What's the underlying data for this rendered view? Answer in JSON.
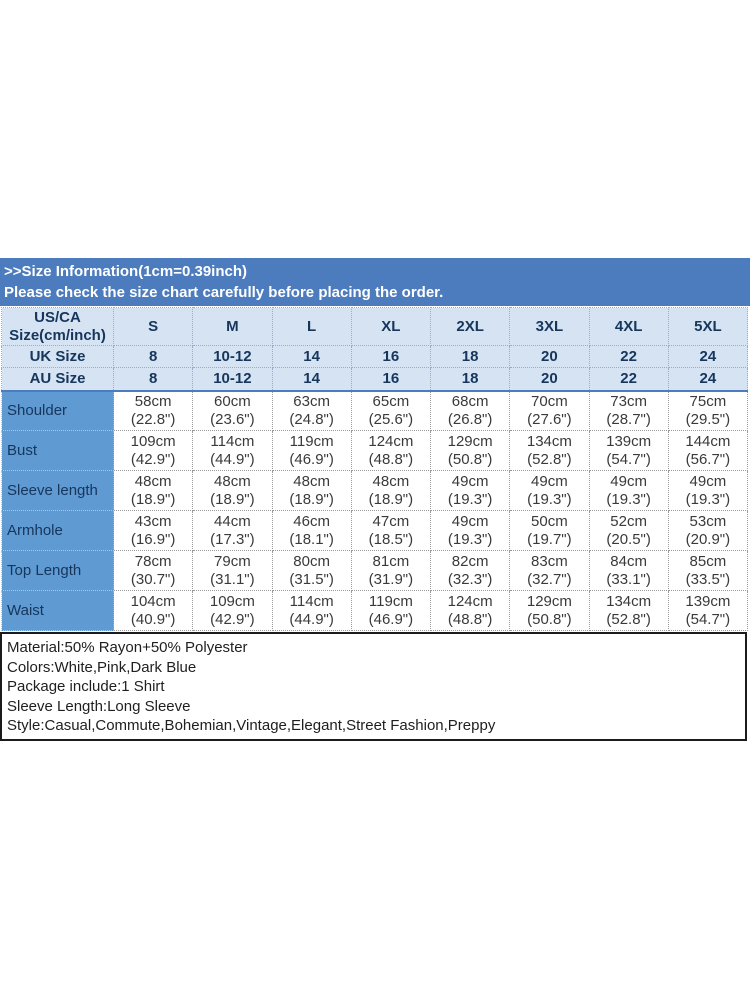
{
  "banner": {
    "title": ">>Size Information(1cm=0.39inch)",
    "subtitle": "Please check the size chart carefully before placing the order."
  },
  "table": {
    "corner_label": "US/CA\nSize(cm/inch)",
    "size_columns": [
      "S",
      "M",
      "L",
      "XL",
      "2XL",
      "3XL",
      "4XL",
      "5XL"
    ],
    "conversion_rows": [
      {
        "label": "UK Size",
        "values": [
          "8",
          "10-12",
          "14",
          "16",
          "18",
          "20",
          "22",
          "24"
        ]
      },
      {
        "label": "AU Size",
        "values": [
          "8",
          "10-12",
          "14",
          "16",
          "18",
          "20",
          "22",
          "24"
        ]
      }
    ],
    "measurement_rows": [
      {
        "label": "Shoulder",
        "values": [
          "58cm\n(22.8\")",
          "60cm\n(23.6\")",
          "63cm\n(24.8\")",
          "65cm\n(25.6\")",
          "68cm\n(26.8\")",
          "70cm\n(27.6\")",
          "73cm\n(28.7\")",
          "75cm\n(29.5\")"
        ]
      },
      {
        "label": "Bust",
        "values": [
          "109cm\n(42.9\")",
          "114cm\n(44.9\")",
          "119cm\n(46.9\")",
          "124cm\n(48.8\")",
          "129cm\n(50.8\")",
          "134cm\n(52.8\")",
          "139cm\n(54.7\")",
          "144cm\n(56.7\")"
        ]
      },
      {
        "label": "Sleeve length",
        "values": [
          "48cm\n(18.9\")",
          "48cm\n(18.9\")",
          "48cm\n(18.9\")",
          "48cm\n(18.9\")",
          "49cm\n(19.3\")",
          "49cm\n(19.3\")",
          "49cm\n(19.3\")",
          "49cm\n(19.3\")"
        ]
      },
      {
        "label": "Armhole",
        "values": [
          "43cm\n(16.9\")",
          "44cm\n(17.3\")",
          "46cm\n(18.1\")",
          "47cm\n(18.5\")",
          "49cm\n(19.3\")",
          "50cm\n(19.7\")",
          "52cm\n(20.5\")",
          "53cm\n(20.9\")"
        ]
      },
      {
        "label": "Top Length",
        "values": [
          "78cm\n(30.7\")",
          "79cm\n(31.1\")",
          "80cm\n(31.5\")",
          "81cm\n(31.9\")",
          "82cm\n(32.3\")",
          "83cm\n(32.7\")",
          "84cm\n(33.1\")",
          "85cm\n(33.5\")"
        ]
      },
      {
        "label": "Waist",
        "values": [
          "104cm\n(40.9\")",
          "109cm\n(42.9\")",
          "114cm\n(44.9\")",
          "119cm\n(46.9\")",
          "124cm\n(48.8\")",
          "129cm\n(50.8\")",
          "134cm\n(52.8\")",
          "139cm\n(54.7\")"
        ]
      }
    ]
  },
  "details": {
    "lines": [
      "Material:50% Rayon+50% Polyester",
      "Colors:White,Pink,Dark Blue",
      "Package include:1 Shirt",
      "Sleeve Length:Long Sleeve",
      "Style:Casual,Commute,Bohemian,Vintage,Elegant,Street Fashion,Preppy"
    ]
  },
  "colors": {
    "banner_bg": "#4c7cbe",
    "header_bg": "#d5e3f2",
    "row_label_bg": "#5f9ad3",
    "header_text": "#16365c",
    "body_text": "#3a3a3a",
    "details_border": "#1b1b1b"
  }
}
